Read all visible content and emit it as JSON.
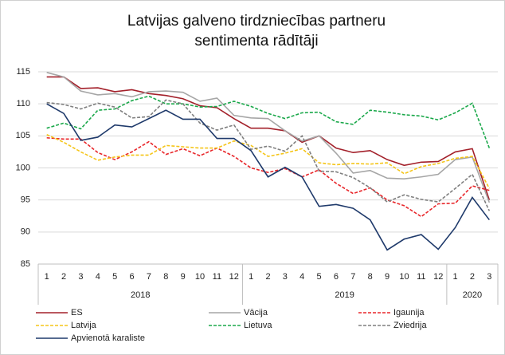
{
  "chart_data": {
    "type": "line",
    "title": [
      "Latvijas galveno tirdzniecības partneru",
      "sentimenta rādītāji"
    ],
    "categories": [
      "1",
      "2",
      "3",
      "4",
      "5",
      "6",
      "7",
      "8",
      "9",
      "10",
      "11",
      "12",
      "1",
      "2",
      "3",
      "4",
      "5",
      "6",
      "7",
      "8",
      "9",
      "10",
      "11",
      "12",
      "1",
      "2",
      "3"
    ],
    "years": [
      "2018",
      "2019",
      "2020"
    ],
    "ylim": [
      85,
      115
    ],
    "yticks": [
      85,
      90,
      95,
      100,
      105,
      110,
      115
    ],
    "grid": true,
    "series": [
      {
        "name": "ES",
        "color": "#a3202a",
        "dash": false,
        "values": [
          114.2,
          114.2,
          112.4,
          112.5,
          111.9,
          112.2,
          111.6,
          111.3,
          110.8,
          109.7,
          109.4,
          107.7,
          106.2,
          106.2,
          105.8,
          104.0,
          105.0,
          103.1,
          102.4,
          102.7,
          101.3,
          100.4,
          100.9,
          101.0,
          102.5,
          103.0,
          95.0
        ]
      },
      {
        "name": "Vācija",
        "color": "#a6a6a6",
        "dash": false,
        "values": [
          114.9,
          114.2,
          112.0,
          111.4,
          111.6,
          111.1,
          111.9,
          112.0,
          111.8,
          110.4,
          110.9,
          108.2,
          107.8,
          107.7,
          105.8,
          104.2,
          105.0,
          102.3,
          99.2,
          99.6,
          98.4,
          98.3,
          98.6,
          99.0,
          101.3,
          101.7,
          94.6
        ]
      },
      {
        "name": "Igaunija",
        "color": "#e8262a",
        "dash": true,
        "values": [
          104.7,
          104.5,
          104.5,
          102.4,
          101.3,
          102.5,
          104.1,
          102.1,
          103.0,
          101.9,
          103.1,
          101.8,
          100.0,
          99.3,
          99.9,
          98.6,
          99.7,
          97.6,
          96.0,
          96.9,
          95.0,
          94.1,
          92.4,
          94.4,
          94.5,
          97.2,
          96.5
        ]
      },
      {
        "name": "Latvija",
        "color": "#f5c518",
        "dash": true,
        "values": [
          105.2,
          104.0,
          102.5,
          101.2,
          101.7,
          102.0,
          102.0,
          103.5,
          103.3,
          103.1,
          103.1,
          104.2,
          103.5,
          101.8,
          102.3,
          103.0,
          100.8,
          100.5,
          100.7,
          100.6,
          100.8,
          99.1,
          100.2,
          100.7,
          101.5,
          101.8,
          96.8
        ]
      },
      {
        "name": "Lietuva",
        "color": "#1aa84a",
        "dash": true,
        "values": [
          106.2,
          107.0,
          106.1,
          109.0,
          109.2,
          110.5,
          111.2,
          110.0,
          110.0,
          109.5,
          109.6,
          110.4,
          109.6,
          108.5,
          107.7,
          108.6,
          108.7,
          107.2,
          106.8,
          109.0,
          108.7,
          108.3,
          108.1,
          107.5,
          108.6,
          110.1,
          103.1
        ]
      },
      {
        "name": "Zviedrija",
        "color": "#7f7f7f",
        "dash": true,
        "values": [
          110.2,
          109.9,
          109.2,
          110.1,
          109.5,
          107.8,
          108.0,
          110.6,
          110.0,
          107.0,
          105.9,
          106.7,
          102.9,
          103.4,
          102.6,
          105.0,
          99.5,
          99.4,
          98.5,
          96.9,
          94.7,
          95.8,
          95.1,
          94.7,
          96.8,
          99.0,
          93.3
        ]
      },
      {
        "name": "Apvienotā karaliste",
        "color": "#1f3a6b",
        "dash": false,
        "values": [
          110.0,
          108.5,
          104.3,
          104.8,
          106.7,
          106.4,
          107.7,
          109.0,
          107.6,
          107.6,
          104.6,
          104.6,
          102.7,
          98.6,
          100.1,
          98.6,
          94.0,
          94.3,
          93.7,
          91.9,
          87.2,
          88.9,
          89.6,
          87.3,
          90.7,
          95.4,
          91.9
        ]
      }
    ]
  }
}
